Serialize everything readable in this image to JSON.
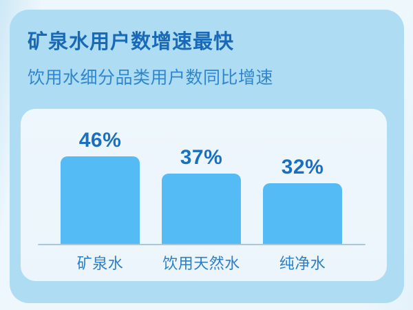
{
  "header": {
    "title": "矿泉水用户数增速最快",
    "subtitle": "饮用水细分品类用户数同比增速"
  },
  "chart_data": {
    "type": "bar",
    "title": "矿泉水用户数增速最快",
    "subtitle": "饮用水细分品类用户数同比增速",
    "categories": [
      "矿泉水",
      "饮用天然水",
      "纯净水"
    ],
    "values": [
      46,
      37,
      32
    ],
    "value_labels": [
      "46%",
      "37%",
      "32%"
    ],
    "unit": "%",
    "ylim": [
      0,
      50
    ],
    "grid": false,
    "legend": false,
    "orientation": "vertical",
    "bar_color": "#55bbf4"
  },
  "colors": {
    "page_bg": "#edf7fc",
    "page_edge": "#cde8f6",
    "card_bg": "#aeddf3",
    "panel_bg": "#ebf5fb",
    "bar": "#55bbf4",
    "title_text": "#1969b7",
    "subtitle_text": "#2f86ce",
    "value_text": "#1b6fbf",
    "category_text": "#2b7ec8",
    "baseline": "#a9c8dc"
  }
}
